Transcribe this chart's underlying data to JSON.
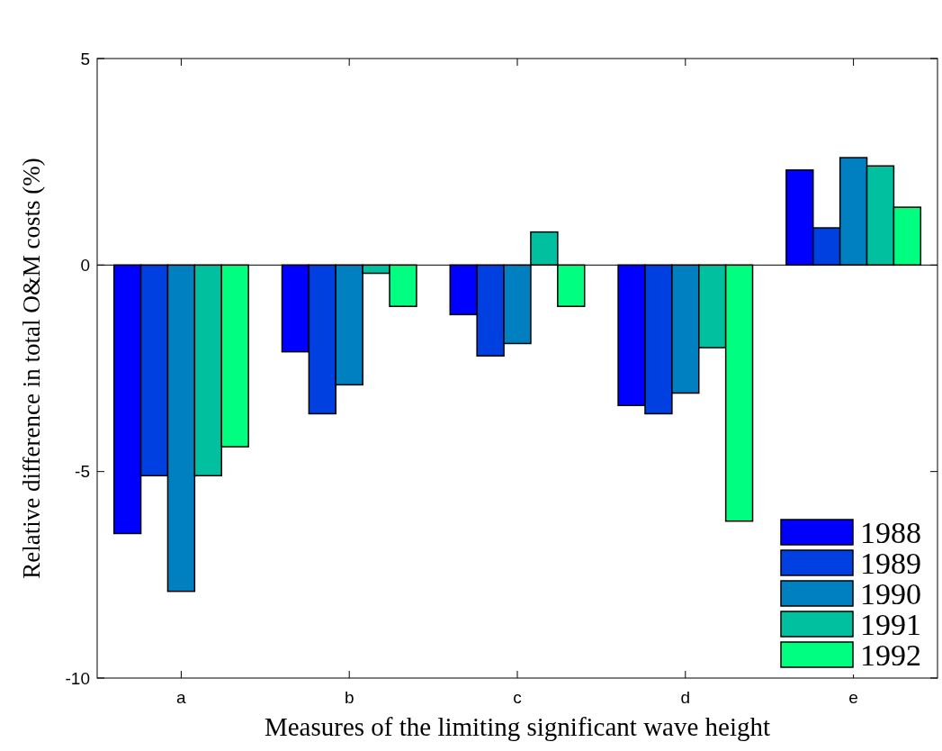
{
  "chart_data": {
    "type": "bar",
    "xlabel": "Measures of the limiting significant wave height",
    "ylabel": "Relative difference in total O&M costs (%)",
    "categories": [
      "a",
      "b",
      "c",
      "d",
      "e"
    ],
    "series": [
      {
        "name": "1988",
        "color": "#0000ff",
        "values": [
          -6.5,
          -2.1,
          -1.2,
          -3.4,
          2.3
        ]
      },
      {
        "name": "1989",
        "color": "#0040e0",
        "values": [
          -5.1,
          -3.6,
          -2.2,
          -3.6,
          0.9
        ]
      },
      {
        "name": "1990",
        "color": "#0080c0",
        "values": [
          -7.9,
          -2.9,
          -1.9,
          -3.1,
          2.6
        ]
      },
      {
        "name": "1991",
        "color": "#00c0a0",
        "values": [
          -5.1,
          -0.2,
          0.8,
          -2.0,
          2.4
        ]
      },
      {
        "name": "1992",
        "color": "#00ff80",
        "values": [
          -4.4,
          -1.0,
          -1.0,
          -6.2,
          1.4
        ]
      }
    ],
    "ylim": [
      -10,
      5
    ],
    "yticks": [
      -10,
      -5,
      0,
      5
    ],
    "legend": "bottom right"
  }
}
